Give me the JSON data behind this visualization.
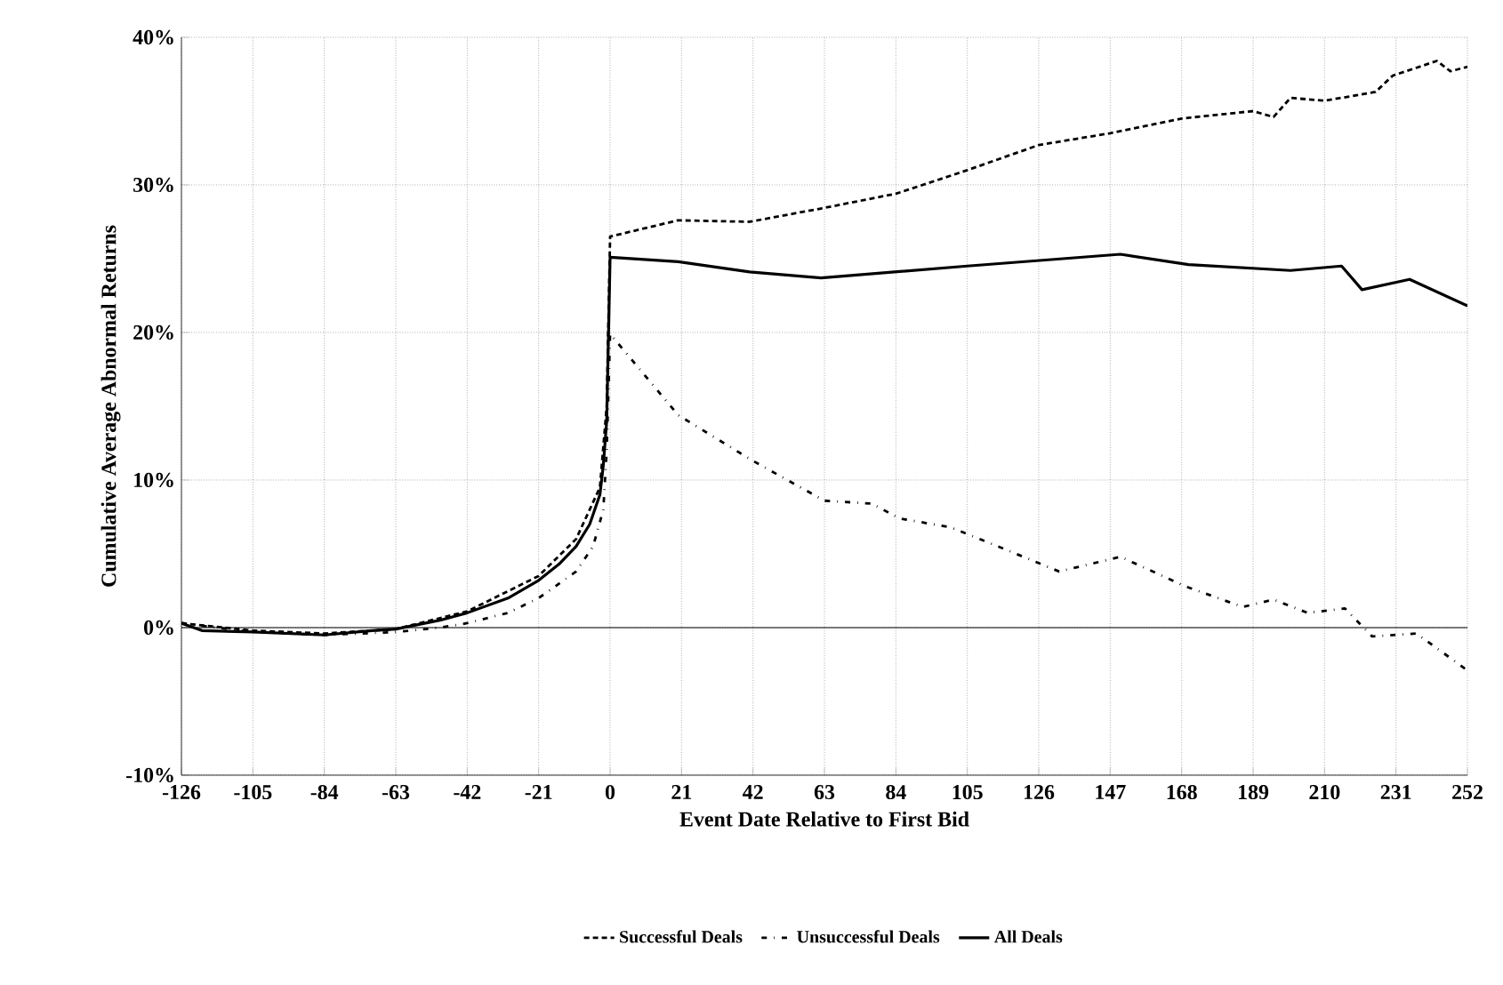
{
  "chart_data": {
    "type": "line",
    "xlabel": "Event Date Relative to First Bid",
    "ylabel": "Cumulative Average Abnormal Returns",
    "xlim": [
      -126,
      252
    ],
    "xticks": [
      -126,
      -105,
      -84,
      -63,
      -42,
      -21,
      0,
      21,
      42,
      63,
      84,
      105,
      126,
      147,
      168,
      189,
      210,
      231,
      252
    ],
    "ylim": [
      -10,
      40
    ],
    "yticks": [
      {
        "value": -10,
        "label": "-10%"
      },
      {
        "value": 0,
        "label": "0%"
      },
      {
        "value": 10,
        "label": "10%"
      },
      {
        "value": 20,
        "label": "20%"
      },
      {
        "value": 30,
        "label": "30%"
      },
      {
        "value": 40,
        "label": "40%"
      }
    ],
    "grid": true,
    "legend": "bottom",
    "ref_lines": [
      {
        "axis": "y",
        "value": 0,
        "color": "#000000",
        "line_style": "solid"
      }
    ],
    "series": [
      {
        "name": "Successful Deals",
        "color": "#000000",
        "line_style": "dashed",
        "x": [
          -126,
          -105,
          -84,
          -63,
          -42,
          -21,
          -10,
          -3,
          -1,
          0,
          20,
          41,
          62,
          84,
          105,
          126,
          147,
          168,
          189,
          195,
          200,
          210,
          225,
          230,
          243,
          247,
          252
        ],
        "values": [
          0.3,
          -0.2,
          -0.4,
          -0.1,
          1.1,
          3.5,
          6,
          9.5,
          15,
          26.5,
          27.6,
          27.5,
          28.4,
          29.4,
          31,
          32.7,
          33.5,
          34.5,
          35,
          34.6,
          35.9,
          35.7,
          36.3,
          37.4,
          38.4,
          37.7,
          38
        ]
      },
      {
        "name": "Unsuccessful Deals",
        "color": "#000000",
        "line_style": "dotted",
        "x": [
          -126,
          -105,
          -84,
          -63,
          -50,
          -42,
          -30,
          -21,
          -10,
          -5,
          -2,
          -1,
          0,
          20,
          42,
          63,
          77,
          85,
          100,
          113,
          132,
          150,
          169,
          186,
          195,
          205,
          216,
          224,
          237,
          252
        ],
        "values": [
          0.3,
          -0.3,
          -0.5,
          -0.3,
          0,
          0.3,
          1,
          2,
          3.8,
          5.5,
          8,
          12,
          19.9,
          14.4,
          11.3,
          8.6,
          8.4,
          7.4,
          6.8,
          5.6,
          3.8,
          4.8,
          2.8,
          1.4,
          1.9,
          1,
          1.3,
          -0.6,
          -0.4,
          -2.9
        ]
      },
      {
        "name": "All Deals",
        "color": "#000000",
        "line_style": "solid",
        "x": [
          -126,
          -120,
          -105,
          -84,
          -70,
          -63,
          -50,
          -42,
          -30,
          -21,
          -15,
          -10,
          -6,
          -3,
          -2,
          -1,
          0,
          20,
          41,
          62,
          105,
          150,
          170,
          200,
          215,
          221,
          235,
          252
        ],
        "values": [
          0.3,
          -0.2,
          -0.3,
          -0.5,
          -0.2,
          -0.1,
          0.5,
          1,
          2,
          3.2,
          4.3,
          5.5,
          7,
          9,
          11,
          14,
          25.1,
          24.8,
          24.1,
          23.7,
          24.5,
          25.3,
          24.6,
          24.2,
          24.5,
          22.9,
          23.6,
          21.8
        ]
      }
    ]
  }
}
